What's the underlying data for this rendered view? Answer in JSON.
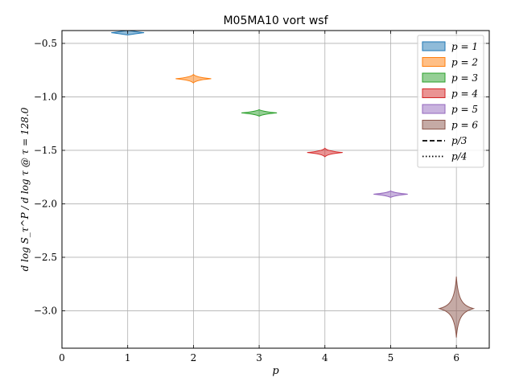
{
  "chart_data": {
    "type": "violin",
    "title": "M05MA10 vort wsf",
    "xlabel": "p",
    "ylabel": "d log S_τ^P / d log τ @ τ = 128.0",
    "xlim": [
      0,
      6.5
    ],
    "ylim": [
      -3.35,
      -0.38
    ],
    "xticks": [
      0,
      1,
      2,
      3,
      4,
      5,
      6
    ],
    "xtick_labels": [
      "0",
      "1",
      "2",
      "3",
      "4",
      "5",
      "6"
    ],
    "yticks": [
      -3.0,
      -2.5,
      -2.0,
      -1.5,
      -1.0,
      -0.5
    ],
    "ytick_labels": [
      "−3.0",
      "−2.5",
      "−2.0",
      "−1.5",
      "−1.0",
      "−0.5"
    ],
    "grid": true,
    "legend_position": "top-right",
    "series": [
      {
        "name": "p = 1",
        "x": 1,
        "center": -0.4,
        "low": -0.42,
        "high": -0.38,
        "halfwidth": 0.25,
        "color": "#1f77b4"
      },
      {
        "name": "p = 2",
        "x": 2,
        "center": -0.83,
        "low": -0.87,
        "high": -0.79,
        "halfwidth": 0.27,
        "color": "#ff7f0e"
      },
      {
        "name": "p = 3",
        "x": 3,
        "center": -1.15,
        "low": -1.18,
        "high": -1.12,
        "halfwidth": 0.27,
        "color": "#2ca02c"
      },
      {
        "name": "p = 4",
        "x": 4,
        "center": -1.52,
        "low": -1.56,
        "high": -1.48,
        "halfwidth": 0.27,
        "color": "#d62728"
      },
      {
        "name": "p = 5",
        "x": 5,
        "center": -1.91,
        "low": -1.94,
        "high": -1.88,
        "halfwidth": 0.26,
        "color": "#9467bd"
      },
      {
        "name": "p = 6",
        "x": 6,
        "center": -2.98,
        "low": -3.25,
        "high": -2.68,
        "halfwidth": 0.26,
        "color": "#8c564b"
      }
    ],
    "legend_lines": [
      {
        "name": "p/3",
        "style": "dashed"
      },
      {
        "name": "p/4",
        "style": "dotted"
      }
    ]
  }
}
